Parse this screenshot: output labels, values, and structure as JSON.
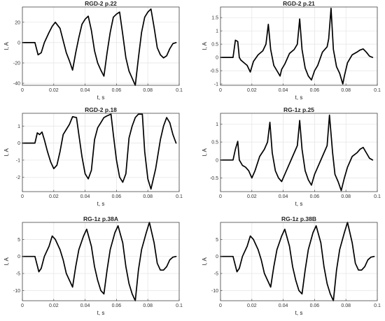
{
  "chart_data": [
    {
      "type": "line",
      "title": "RGD-2 p.22",
      "xlabel": "t, s",
      "ylabel": "I, A",
      "xlim": [
        0,
        0.1
      ],
      "ylim": [
        -42,
        35
      ],
      "xticks": [
        0,
        0.02,
        0.04,
        0.06,
        0.08,
        0.1
      ],
      "xtick_labels": [
        "0",
        "0.02",
        "0.04",
        "0.06",
        "0.08",
        "0.1"
      ],
      "yticks": [
        -40,
        -20,
        0,
        20
      ],
      "ytick_labels": [
        "-40",
        "-20",
        "0",
        "20"
      ],
      "grid": true,
      "series": [
        {
          "x": [
            0,
            0.008,
            0.01,
            0.012,
            0.014,
            0.017,
            0.019,
            0.021,
            0.024,
            0.026,
            0.028,
            0.03,
            0.032,
            0.034,
            0.036,
            0.038,
            0.04,
            0.042,
            0.044,
            0.046,
            0.048,
            0.05,
            0.052,
            0.054,
            0.056,
            0.058,
            0.06,
            0.062,
            0.064,
            0.066,
            0.068,
            0.07,
            0.072,
            0.074,
            0.076,
            0.078,
            0.08,
            0.082,
            0.084,
            0.086,
            0.088,
            0.09,
            0.092,
            0.094,
            0.096,
            0.098
          ],
          "y": [
            0,
            0,
            -12,
            -10,
            0,
            10,
            16,
            20,
            14,
            2,
            -10,
            -18,
            -27,
            -10,
            5,
            18,
            23,
            26,
            12,
            -8,
            -20,
            -27,
            -33,
            -10,
            10,
            25,
            28,
            30,
            8,
            -15,
            -28,
            -35,
            -42,
            -15,
            10,
            25,
            30,
            33,
            15,
            -5,
            -12,
            -15,
            -13,
            -6,
            -1,
            0
          ]
        }
      ]
    },
    {
      "type": "line",
      "title": "RGD-2 p.21",
      "xlabel": "t, s",
      "ylabel": "I, A",
      "xlim": [
        0,
        0.1
      ],
      "ylim": [
        -1.05,
        1.9
      ],
      "xticks": [
        0,
        0.02,
        0.04,
        0.06,
        0.08,
        0.1
      ],
      "xtick_labels": [
        "0",
        "0.02",
        "0.04",
        "0.06",
        "0.08",
        "0.1"
      ],
      "yticks": [
        -1,
        -0.5,
        0,
        0.5,
        1,
        1.5
      ],
      "ytick_labels": [
        "-1",
        "-0.5",
        "0",
        "0.5",
        "1",
        "1.5"
      ],
      "grid": true,
      "series": [
        {
          "x": [
            0,
            0.008,
            0.0095,
            0.011,
            0.012,
            0.013,
            0.015,
            0.017,
            0.019,
            0.021,
            0.024,
            0.027,
            0.029,
            0.0305,
            0.032,
            0.034,
            0.036,
            0.038,
            0.039,
            0.041,
            0.044,
            0.047,
            0.049,
            0.0505,
            0.052,
            0.054,
            0.056,
            0.058,
            0.06,
            0.062,
            0.065,
            0.068,
            0.069,
            0.0705,
            0.072,
            0.074,
            0.076,
            0.078,
            0.079,
            0.081,
            0.084,
            0.087,
            0.089,
            0.091,
            0.093,
            0.095,
            0.097
          ],
          "y": [
            0,
            0,
            0.65,
            0.6,
            0,
            -0.1,
            -0.2,
            -0.3,
            -0.55,
            -0.15,
            0.1,
            0.25,
            0.5,
            1.25,
            0.3,
            -0.3,
            -0.5,
            -0.7,
            -0.45,
            -0.25,
            0.15,
            0.3,
            0.5,
            1.45,
            0.3,
            -0.4,
            -0.7,
            -0.85,
            -0.5,
            -0.3,
            0.2,
            0.4,
            0.7,
            1.85,
            0.3,
            -0.35,
            -0.6,
            -1.0,
            -0.7,
            -0.2,
            0.1,
            0.2,
            0.28,
            0.32,
            0.2,
            0.05,
            0
          ]
        }
      ]
    },
    {
      "type": "line",
      "title": "RGD-2 p.18",
      "xlabel": "t, s",
      "ylabel": "I, A",
      "xlim": [
        0,
        0.1
      ],
      "ylim": [
        -2.85,
        1.75
      ],
      "xticks": [
        0,
        0.02,
        0.04,
        0.06,
        0.08,
        0.1
      ],
      "xtick_labels": [
        "0",
        "0.02",
        "0.04",
        "0.06",
        "0.08",
        "0.1"
      ],
      "yticks": [
        -2,
        -1,
        0,
        1
      ],
      "ytick_labels": [
        "-2",
        "-1",
        "0",
        "1"
      ],
      "grid": true,
      "series": [
        {
          "x": [
            0,
            0.008,
            0.0095,
            0.011,
            0.0125,
            0.014,
            0.016,
            0.018,
            0.02,
            0.022,
            0.024,
            0.026,
            0.028,
            0.03,
            0.032,
            0.0345,
            0.036,
            0.038,
            0.04,
            0.042,
            0.044,
            0.046,
            0.048,
            0.05,
            0.052,
            0.054,
            0.0565,
            0.058,
            0.06,
            0.062,
            0.064,
            0.066,
            0.068,
            0.07,
            0.072,
            0.074,
            0.0765,
            0.078,
            0.08,
            0.082,
            0.085,
            0.088,
            0.09,
            0.092,
            0.094,
            0.096,
            0.098
          ],
          "y": [
            0,
            0,
            0.6,
            0.5,
            0.65,
            0.2,
            -0.5,
            -1.1,
            -1.5,
            -1.3,
            -0.5,
            0.5,
            0.8,
            1.1,
            1.55,
            1.5,
            0.5,
            -0.8,
            -1.8,
            -2.1,
            -1.6,
            0.2,
            0.9,
            1.2,
            1.5,
            1.6,
            1.7,
            0.5,
            -1.0,
            -2.0,
            -2.3,
            -1.8,
            0.3,
            1.0,
            1.5,
            1.7,
            1.7,
            -0.5,
            -2.1,
            -2.7,
            -1.5,
            0.2,
            1.0,
            1.5,
            1.2,
            0.5,
            0
          ]
        }
      ]
    },
    {
      "type": "line",
      "title": "RG-1z p.25",
      "xlabel": "t, s",
      "ylabel": "I, A",
      "xlim": [
        0,
        0.1
      ],
      "ylim": [
        -0.88,
        1.3
      ],
      "xticks": [
        0,
        0.02,
        0.04,
        0.06,
        0.08,
        0.1
      ],
      "xtick_labels": [
        "0",
        "0.02",
        "0.04",
        "0.06",
        "0.08",
        "0.1"
      ],
      "yticks": [
        -0.5,
        0,
        0.5,
        1
      ],
      "ytick_labels": [
        "-0.5",
        "0",
        "0.5",
        "1"
      ],
      "grid": true,
      "series": [
        {
          "x": [
            0,
            0.008,
            0.0095,
            0.011,
            0.012,
            0.014,
            0.016,
            0.018,
            0.02,
            0.022,
            0.025,
            0.028,
            0.03,
            0.0315,
            0.033,
            0.035,
            0.037,
            0.039,
            0.041,
            0.043,
            0.046,
            0.049,
            0.0505,
            0.052,
            0.054,
            0.056,
            0.058,
            0.06,
            0.062,
            0.065,
            0.068,
            0.0695,
            0.0715,
            0.073,
            0.075,
            0.077,
            0.079,
            0.081,
            0.084,
            0.087,
            0.089,
            0.091,
            0.093,
            0.095,
            0.097
          ],
          "y": [
            0,
            0,
            0.3,
            0.52,
            0,
            -0.15,
            -0.2,
            -0.3,
            -0.5,
            -0.3,
            0.1,
            0.3,
            0.5,
            1.05,
            0.2,
            -0.3,
            -0.5,
            -0.6,
            -0.4,
            -0.2,
            0.1,
            0.4,
            1.1,
            0.3,
            -0.3,
            -0.55,
            -0.7,
            -0.4,
            -0.2,
            0.1,
            0.4,
            1.25,
            0.2,
            -0.4,
            -0.6,
            -0.85,
            -0.5,
            -0.2,
            0.1,
            0.2,
            0.3,
            0.35,
            0.2,
            0.05,
            0
          ]
        }
      ]
    },
    {
      "type": "line",
      "title": "RG-1z p.38A",
      "xlabel": "t, s",
      "ylabel": "I, A",
      "xlim": [
        0,
        0.1
      ],
      "ylim": [
        -13,
        10
      ],
      "xticks": [
        0,
        0.02,
        0.04,
        0.06,
        0.08,
        0.1
      ],
      "xtick_labels": [
        "0",
        "0.02",
        "0.04",
        "0.06",
        "0.08",
        "0.1"
      ],
      "yticks": [
        -10,
        -5,
        0,
        5
      ],
      "ytick_labels": [
        "-10",
        "-5",
        "0",
        "5"
      ],
      "grid": true,
      "series": [
        {
          "x": [
            0,
            0.008,
            0.0105,
            0.012,
            0.014,
            0.017,
            0.019,
            0.021,
            0.024,
            0.026,
            0.028,
            0.03,
            0.032,
            0.034,
            0.036,
            0.039,
            0.041,
            0.044,
            0.046,
            0.048,
            0.05,
            0.052,
            0.054,
            0.056,
            0.059,
            0.061,
            0.064,
            0.066,
            0.068,
            0.07,
            0.072,
            0.074,
            0.076,
            0.079,
            0.081,
            0.084,
            0.086,
            0.088,
            0.09,
            0.092,
            0.094,
            0.096,
            0.098
          ],
          "y": [
            0,
            0,
            -4.5,
            -3.5,
            0,
            3,
            6,
            5,
            2,
            -1,
            -5,
            -7,
            -9,
            -3,
            2,
            6,
            8,
            3,
            -3,
            -7,
            -10,
            -11,
            -4,
            2,
            7,
            9,
            4,
            -3,
            -8,
            -11,
            -13,
            -4,
            2,
            7,
            10,
            4,
            -2,
            -4,
            -4,
            -3,
            -1,
            -0.2,
            0
          ]
        }
      ]
    },
    {
      "type": "line",
      "title": "RG-1z p.38B",
      "xlabel": "t, s",
      "ylabel": "I, A",
      "xlim": [
        0,
        0.1
      ],
      "ylim": [
        -13,
        10
      ],
      "xticks": [
        0,
        0.02,
        0.04,
        0.06,
        0.08,
        0.1
      ],
      "xtick_labels": [
        "0",
        "0.02",
        "0.04",
        "0.06",
        "0.08",
        "0.1"
      ],
      "yticks": [
        -10,
        -5,
        0,
        5
      ],
      "ytick_labels": [
        "-10",
        "-5",
        "0",
        "5"
      ],
      "grid": true,
      "series": [
        {
          "x": [
            0,
            0.008,
            0.0105,
            0.012,
            0.014,
            0.017,
            0.019,
            0.021,
            0.024,
            0.026,
            0.028,
            0.03,
            0.032,
            0.034,
            0.036,
            0.039,
            0.041,
            0.044,
            0.046,
            0.048,
            0.05,
            0.052,
            0.054,
            0.056,
            0.059,
            0.061,
            0.064,
            0.066,
            0.068,
            0.07,
            0.072,
            0.074,
            0.076,
            0.079,
            0.081,
            0.084,
            0.086,
            0.088,
            0.09,
            0.092,
            0.094,
            0.096,
            0.098
          ],
          "y": [
            0,
            0,
            -4.5,
            -3.5,
            0,
            3,
            6,
            5,
            2,
            -1,
            -5,
            -7,
            -9,
            -3,
            2,
            6,
            8,
            3,
            -3,
            -7,
            -10,
            -11,
            -4,
            2,
            7,
            9,
            4,
            -3,
            -8,
            -11,
            -13,
            -4,
            2,
            7,
            10,
            4,
            -2,
            -4,
            -4,
            -3,
            -1,
            -0.2,
            0
          ]
        }
      ]
    }
  ]
}
